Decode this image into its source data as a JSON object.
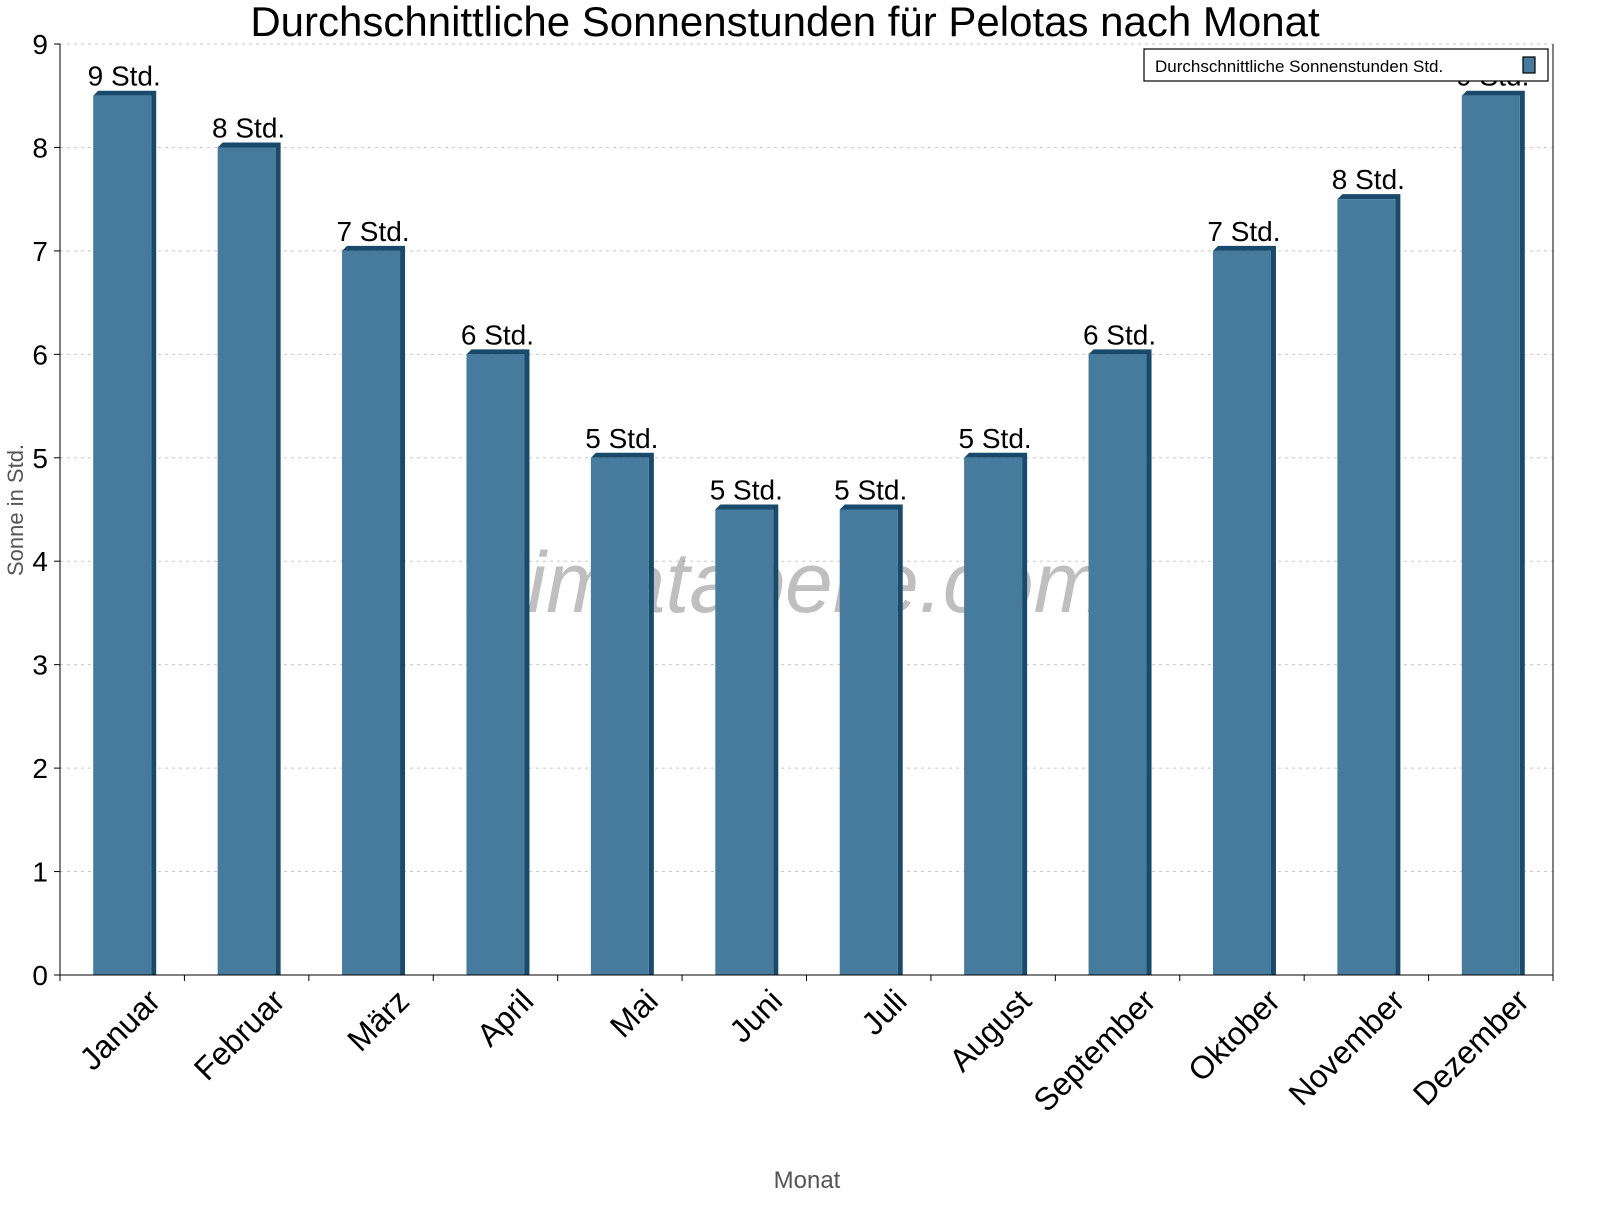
{
  "chart_data": {
    "type": "bar",
    "title": "Durchschnittliche Sonnenstunden für Pelotas nach Monat",
    "xlabel": "Monat",
    "ylabel": "Sonne in Std.",
    "ylim": [
      0,
      9
    ],
    "yticks": [
      "0",
      "1",
      "2",
      "3",
      "4",
      "5",
      "6",
      "7",
      "8",
      "9"
    ],
    "grid": true,
    "legend_position": "top-right",
    "categories": [
      "Januar",
      "Februar",
      "März",
      "April",
      "Mai",
      "Juni",
      "Juli",
      "August",
      "September",
      "Oktober",
      "November",
      "Dezember"
    ],
    "series": [
      {
        "name": "Durchschnittliche Sonnenstunden Std.",
        "values": [
          8.5,
          8,
          7,
          6,
          5,
          4.5,
          4.5,
          5,
          6,
          7,
          7.5,
          8.5
        ],
        "data_labels": [
          "9 Std.",
          "8 Std.",
          "7 Std.",
          "6 Std.",
          "5 Std.",
          "5 Std.",
          "5 Std.",
          "5 Std.",
          "6 Std.",
          "7 Std.",
          "8 Std.",
          "9 Std."
        ]
      }
    ],
    "watermark": "klimatabelle.com",
    "colors": {
      "bar": "#467b9e",
      "bar_side": "#1a4a6b",
      "grid": "#c8c8c8"
    }
  }
}
